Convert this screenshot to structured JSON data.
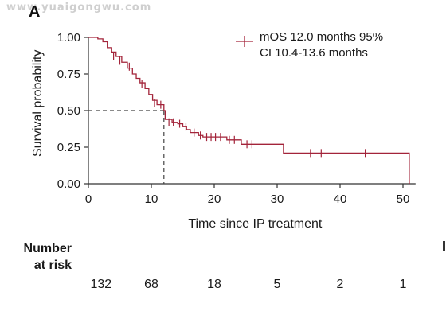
{
  "watermark": "www.yuaigongwu.com",
  "panel_label": "A",
  "colors": {
    "curve": "#a3243a",
    "axis": "#333333",
    "reference": "#444444"
  },
  "chart_data": {
    "type": "line",
    "subtype": "kaplan-meier-step",
    "xlabel": "Time since IP treatment",
    "ylabel": "Survival probability",
    "xlim": [
      0,
      52
    ],
    "ylim": [
      0,
      1
    ],
    "xticks": [
      0,
      10,
      20,
      30,
      40,
      50
    ],
    "xtick_labels": [
      "0",
      "10",
      "20",
      "30",
      "40",
      "50"
    ],
    "yticks": [
      0,
      0.25,
      0.5,
      0.75,
      1.0
    ],
    "ytick_labels": [
      "0.00",
      "0.25",
      "0.50",
      "0.75",
      "1.00"
    ],
    "grid": false,
    "legend": {
      "lines": [
        "mOS 12.0 months 95%",
        "CI 10.4-13.6 months"
      ],
      "placement": "top-right"
    },
    "median": {
      "x": 12.0,
      "y": 0.5
    },
    "series": [
      {
        "color": "#a3243a",
        "steps": [
          [
            0,
            1.0
          ],
          [
            1.5,
            0.99
          ],
          [
            2.3,
            0.97
          ],
          [
            3.0,
            0.93
          ],
          [
            3.7,
            0.9
          ],
          [
            4.4,
            0.87
          ],
          [
            5.3,
            0.83
          ],
          [
            6.2,
            0.79
          ],
          [
            7.0,
            0.75
          ],
          [
            7.6,
            0.72
          ],
          [
            8.2,
            0.69
          ],
          [
            9.0,
            0.65
          ],
          [
            9.6,
            0.61
          ],
          [
            10.2,
            0.57
          ],
          [
            10.9,
            0.54
          ],
          [
            12.0,
            0.5
          ],
          [
            12.2,
            0.44
          ],
          [
            13.3,
            0.42
          ],
          [
            14.2,
            0.41
          ],
          [
            15.0,
            0.39
          ],
          [
            15.6,
            0.37
          ],
          [
            16.2,
            0.35
          ],
          [
            17.5,
            0.33
          ],
          [
            18.2,
            0.32
          ],
          [
            22.0,
            0.3
          ],
          [
            24.3,
            0.27
          ],
          [
            31.0,
            0.21
          ],
          [
            51.0,
            0.0
          ]
        ],
        "censored": [
          [
            4,
            0.87
          ],
          [
            5,
            0.84
          ],
          [
            6.5,
            0.8
          ],
          [
            8.5,
            0.68
          ],
          [
            10.5,
            0.55
          ],
          [
            11.5,
            0.54
          ],
          [
            12.8,
            0.42
          ],
          [
            13.5,
            0.42
          ],
          [
            14.5,
            0.41
          ],
          [
            15.5,
            0.39
          ],
          [
            16.8,
            0.35
          ],
          [
            17.8,
            0.33
          ],
          [
            18.8,
            0.32
          ],
          [
            19.5,
            0.32
          ],
          [
            20.2,
            0.32
          ],
          [
            21.0,
            0.32
          ],
          [
            22.4,
            0.3
          ],
          [
            23.2,
            0.3
          ],
          [
            25.2,
            0.27
          ],
          [
            26.0,
            0.27
          ],
          [
            35.3,
            0.21
          ],
          [
            37.0,
            0.21
          ],
          [
            44.0,
            0.21
          ]
        ]
      }
    ]
  },
  "risk_table": {
    "title_line1": "Number",
    "title_line2": "at risk",
    "times": [
      2,
      10,
      20,
      30,
      40,
      50
    ],
    "counts": [
      "132",
      "68",
      "18",
      "5",
      "2",
      "1"
    ]
  }
}
